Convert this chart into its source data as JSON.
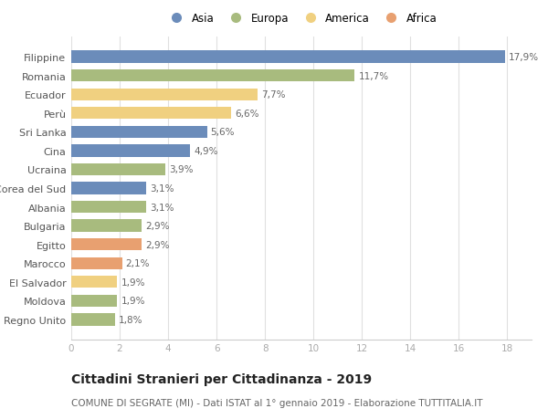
{
  "categories": [
    "Filippine",
    "Romania",
    "Ecuador",
    "Perù",
    "Sri Lanka",
    "Cina",
    "Ucraina",
    "Corea del Sud",
    "Albania",
    "Bulgaria",
    "Egitto",
    "Marocco",
    "El Salvador",
    "Moldova",
    "Regno Unito"
  ],
  "values": [
    17.9,
    11.7,
    7.7,
    6.6,
    5.6,
    4.9,
    3.9,
    3.1,
    3.1,
    2.9,
    2.9,
    2.1,
    1.9,
    1.9,
    1.8
  ],
  "labels": [
    "17,9%",
    "11,7%",
    "7,7%",
    "6,6%",
    "5,6%",
    "4,9%",
    "3,9%",
    "3,1%",
    "3,1%",
    "2,9%",
    "2,9%",
    "2,1%",
    "1,9%",
    "1,9%",
    "1,8%"
  ],
  "colors": [
    "#6b8cba",
    "#a8bb7e",
    "#f0d080",
    "#f0d080",
    "#6b8cba",
    "#6b8cba",
    "#a8bb7e",
    "#6b8cba",
    "#a8bb7e",
    "#a8bb7e",
    "#e8a070",
    "#e8a070",
    "#f0d080",
    "#a8bb7e",
    "#a8bb7e"
  ],
  "legend_labels": [
    "Asia",
    "Europa",
    "America",
    "Africa"
  ],
  "legend_colors": [
    "#6b8cba",
    "#a8bb7e",
    "#f0d080",
    "#e8a070"
  ],
  "title": "Cittadini Stranieri per Cittadinanza - 2019",
  "subtitle": "COMUNE DI SEGRATE (MI) - Dati ISTAT al 1° gennaio 2019 - Elaborazione TUTTITALIA.IT",
  "xlim": [
    0,
    19
  ],
  "xticks": [
    0,
    2,
    4,
    6,
    8,
    10,
    12,
    14,
    16,
    18
  ],
  "background_color": "#ffffff",
  "grid_color": "#e0e0e0",
  "title_fontsize": 10,
  "subtitle_fontsize": 7.5,
  "label_fontsize": 7.5,
  "ytick_fontsize": 8,
  "xtick_fontsize": 7.5,
  "bar_height": 0.65
}
